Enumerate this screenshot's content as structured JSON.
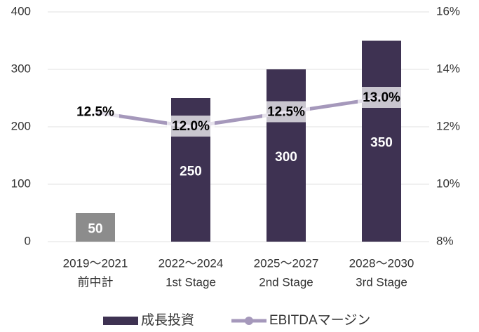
{
  "chart_data": {
    "type": "bar",
    "categories": [
      [
        "2019〜2021",
        "前中計"
      ],
      [
        "2022〜2024",
        "1st Stage"
      ],
      [
        "2025〜2027",
        "2nd Stage"
      ],
      [
        "2028〜2030",
        "3rd Stage"
      ]
    ],
    "series": [
      {
        "name": "成長投資",
        "type": "bar",
        "color": "#3e3252",
        "point_colors": [
          "#8c8c8c",
          "#3e3252",
          "#3e3252",
          "#3e3252"
        ],
        "values": [
          50,
          250,
          300,
          350
        ]
      },
      {
        "name": "EBITDAマージン",
        "type": "line",
        "axis": "y2",
        "color": "#a598bb",
        "values": [
          12.5,
          12.0,
          12.5,
          13.0
        ],
        "value_labels": [
          "12.5%",
          "12.0%",
          "12.5%",
          "13.0%"
        ]
      }
    ],
    "ylim": [
      0,
      400
    ],
    "yticks": [
      0,
      100,
      200,
      300,
      400
    ],
    "y2lim": [
      8,
      16
    ],
    "y2ticks": [
      {
        "value": 8,
        "label": "8%"
      },
      {
        "value": 10,
        "label": "10%"
      },
      {
        "value": 12,
        "label": "12%"
      },
      {
        "value": 14,
        "label": "14%"
      },
      {
        "value": 16,
        "label": "16%"
      }
    ],
    "grid": true,
    "legend": "bottom"
  }
}
